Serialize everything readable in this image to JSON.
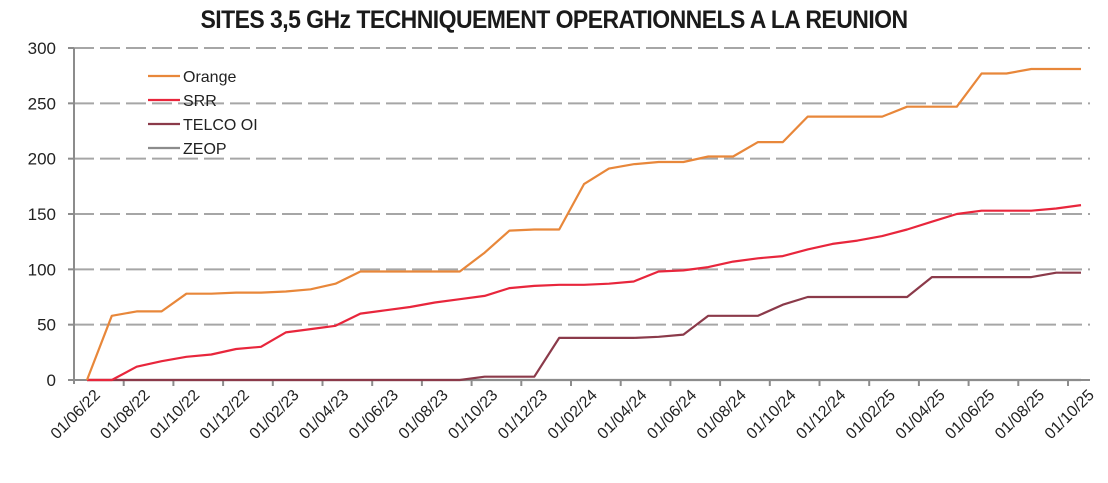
{
  "chart_data": {
    "type": "line",
    "title": "SITES 3,5 GHz TECHNIQUEMENT OPERATIONNELS A LA REUNION",
    "xlabel": "",
    "ylabel": "",
    "ylim": [
      0,
      300
    ],
    "yticks": [
      0,
      50,
      100,
      150,
      200,
      250,
      300
    ],
    "grid": "horizontal dashed",
    "legend_position": "upper-left inside",
    "x_tick_labels": [
      "01/06/22",
      "01/08/22",
      "01/10/22",
      "01/12/22",
      "01/02/23",
      "01/04/23",
      "01/06/23",
      "01/08/23",
      "01/10/23",
      "01/12/23",
      "01/02/24",
      "01/04/24",
      "01/06/24",
      "01/08/24",
      "01/10/24",
      "01/12/24",
      "01/02/25",
      "01/04/25",
      "01/06/25",
      "01/08/25",
      "01/10/25"
    ],
    "x": [
      "06/22",
      "07/22",
      "08/22",
      "09/22",
      "10/22",
      "11/22",
      "12/22",
      "01/23",
      "02/23",
      "03/23",
      "04/23",
      "05/23",
      "06/23",
      "07/23",
      "08/23",
      "09/23",
      "10/23",
      "11/23",
      "12/23",
      "01/24",
      "02/24",
      "03/24",
      "04/24",
      "05/24",
      "06/24",
      "07/24",
      "08/24",
      "09/24",
      "10/24",
      "11/24",
      "12/24",
      "01/25",
      "02/25",
      "03/25",
      "04/25",
      "05/25",
      "06/25",
      "07/25",
      "08/25",
      "09/25",
      "10/25"
    ],
    "series": [
      {
        "name": "Orange",
        "color": "#e8873a",
        "values": [
          0,
          58,
          62,
          62,
          78,
          78,
          79,
          79,
          80,
          82,
          87,
          98,
          98,
          98,
          98,
          98,
          115,
          135,
          136,
          136,
          177,
          191,
          195,
          197,
          197,
          202,
          202,
          215,
          215,
          238,
          238,
          238,
          238,
          247,
          247,
          247,
          277,
          277,
          281,
          281,
          281
        ]
      },
      {
        "name": "SRR",
        "color": "#e8263c",
        "values": [
          0,
          0,
          12,
          17,
          21,
          23,
          28,
          30,
          43,
          46,
          49,
          60,
          63,
          66,
          70,
          73,
          76,
          83,
          85,
          86,
          86,
          87,
          89,
          98,
          99,
          102,
          107,
          110,
          112,
          118,
          123,
          126,
          130,
          136,
          143,
          150,
          153,
          153,
          153,
          155,
          158
        ]
      },
      {
        "name": "TELCO OI",
        "color": "#8b3a4a",
        "values": [
          0,
          0,
          0,
          0,
          0,
          0,
          0,
          0,
          0,
          0,
          0,
          0,
          0,
          0,
          0,
          0,
          3,
          3,
          3,
          38,
          38,
          38,
          38,
          39,
          41,
          58,
          58,
          58,
          68,
          75,
          75,
          75,
          75,
          75,
          93,
          93,
          93,
          93,
          93,
          97,
          97
        ]
      },
      {
        "name": "ZEOP",
        "color": "#8c8c8c",
        "values": [
          0,
          0,
          0,
          0,
          0,
          0,
          0,
          0,
          0,
          0,
          0,
          0,
          0,
          0,
          0,
          0,
          0,
          0,
          0,
          0,
          0,
          0,
          0,
          0,
          0,
          0,
          0,
          0,
          0,
          0,
          0,
          0,
          0,
          0,
          0,
          0,
          0,
          0,
          0,
          0,
          0
        ]
      }
    ]
  },
  "legend": {
    "items": [
      {
        "label": "Orange",
        "color": "#e8873a"
      },
      {
        "label": "SRR",
        "color": "#e8263c"
      },
      {
        "label": "TELCO OI",
        "color": "#8b3a4a"
      },
      {
        "label": "ZEOP",
        "color": "#8c8c8c"
      }
    ]
  }
}
